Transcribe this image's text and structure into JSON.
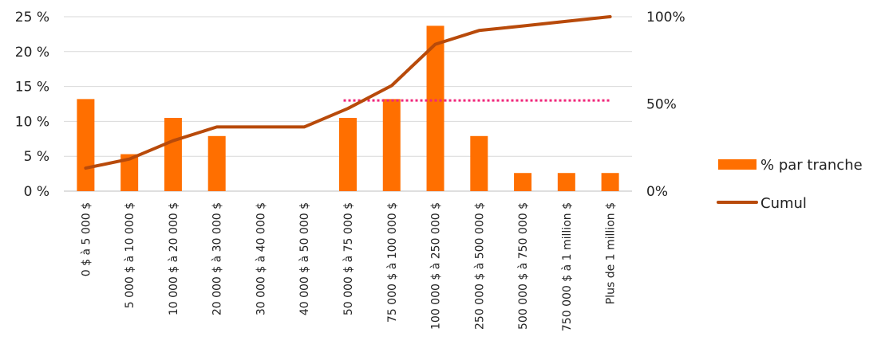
{
  "chart_data": {
    "type": "bar",
    "categories": [
      "0 $ à 5 000 $",
      "5 000 $ à 10 000 $",
      "10 000 $ à 20 000 $",
      "20 000 $ à 30 000 $",
      "30 000 $ à 40 000 $",
      "40 000 $ à 50 000 $",
      "50 000 $ à 75 000 $",
      "75 000 $ à 100 000 $",
      "100 000 $ à 250 000 $",
      "250 000 $ à 500 000 $",
      "500 000 $ à 750 000 $",
      "750 000 $ à 1 million $",
      "Plus de 1 million $"
    ],
    "series": [
      {
        "name": "% par tranche",
        "type": "bar",
        "axis": "left",
        "color": "#FF6F00",
        "values": [
          13.2,
          5.3,
          10.5,
          7.9,
          0,
          0,
          10.5,
          13.2,
          23.7,
          7.9,
          2.6,
          2.6,
          2.6
        ]
      },
      {
        "name": "Cumul",
        "type": "line",
        "axis": "right",
        "color": "#B84A0A",
        "values": [
          13.2,
          18.4,
          28.9,
          36.8,
          36.8,
          36.8,
          47.4,
          60.5,
          84.2,
          92.1,
          94.7,
          97.4,
          100
        ]
      }
    ],
    "reference_line": {
      "axis": "right",
      "value": 52,
      "color": "#F0267A",
      "style": "dotted",
      "from_category": 6.4,
      "to_category": 12.5
    },
    "y_left": {
      "ylim": [
        0,
        25
      ],
      "ticks": [
        0,
        5,
        10,
        15,
        20,
        25
      ],
      "tick_labels": [
        "0 %",
        "5 %",
        "10 %",
        "15 %",
        "20 %",
        "25 %"
      ]
    },
    "y_right": {
      "ylim": [
        0,
        100
      ],
      "ticks": [
        0,
        50,
        100
      ],
      "tick_labels": [
        "0%",
        "50%",
        "100%"
      ]
    },
    "grid": true,
    "legend_position": "right"
  }
}
